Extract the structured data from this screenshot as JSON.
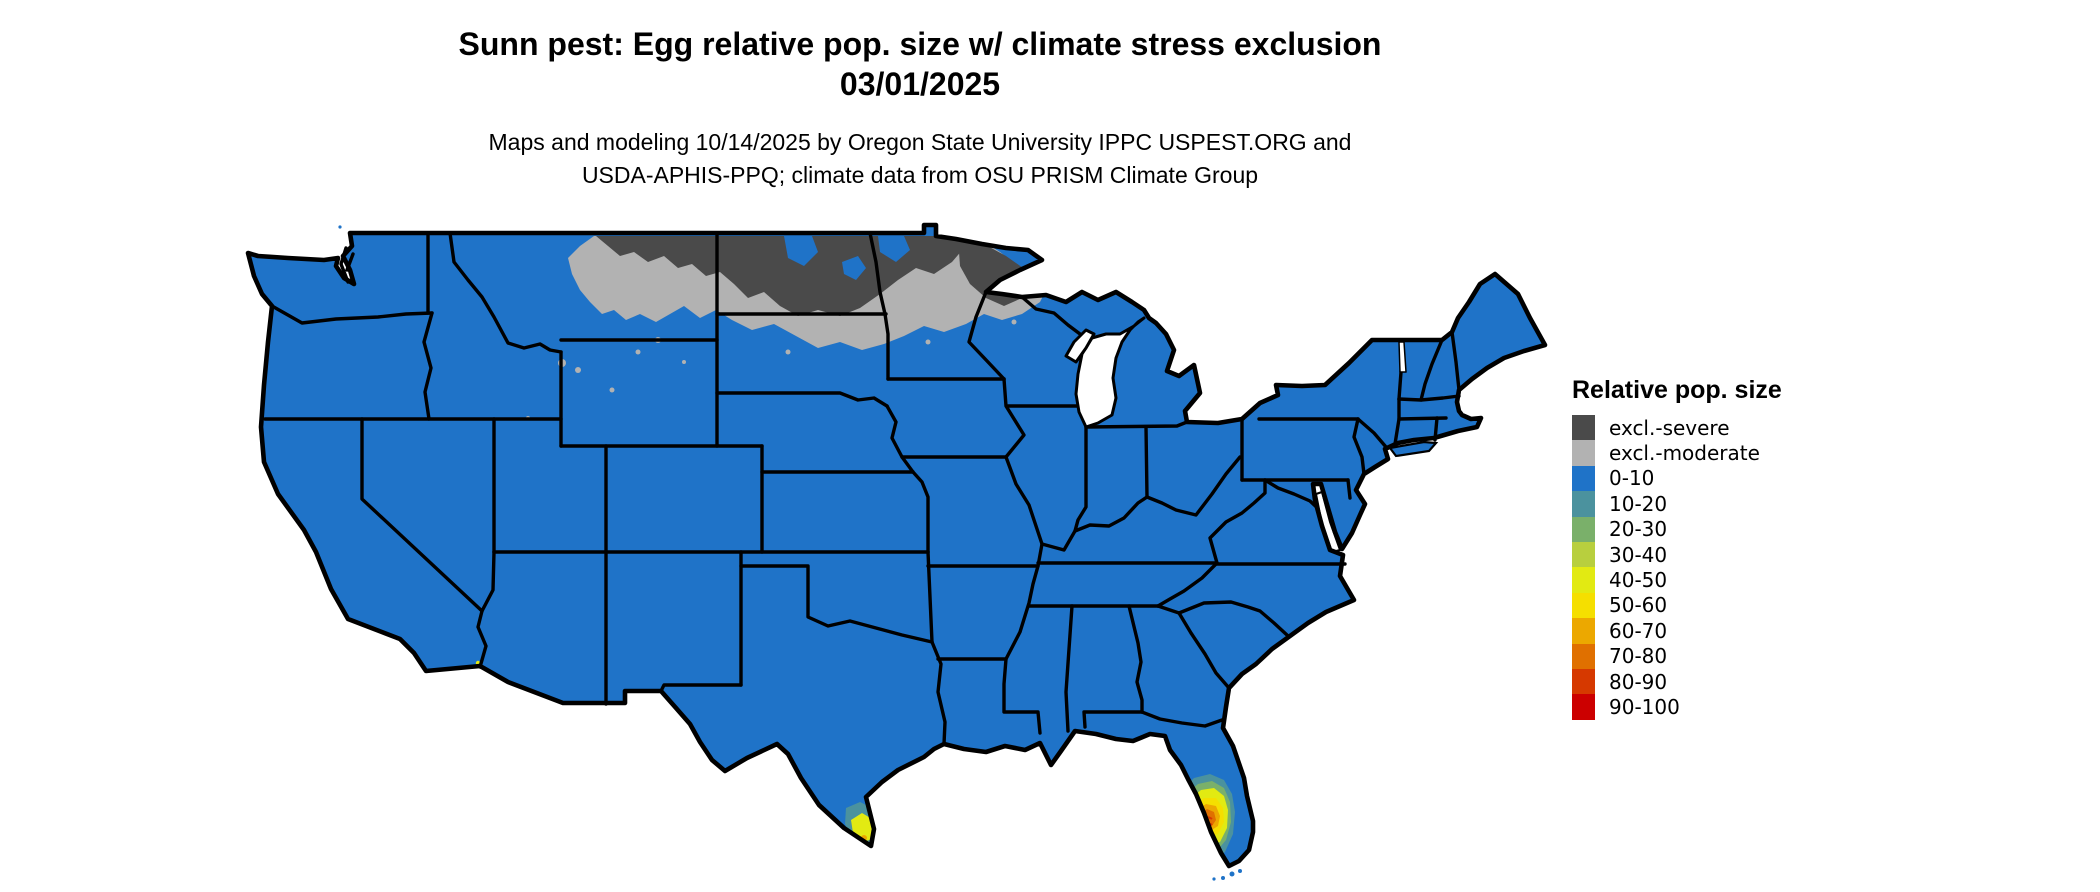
{
  "page": {
    "background": "#ffffff"
  },
  "title": {
    "line1": "Sunn pest: Egg relative pop. size w/ climate stress exclusion",
    "line2": "03/01/2025"
  },
  "subtitle": {
    "line1": "Maps and modeling 10/14/2025 by Oregon State University IPPC USPEST.ORG and",
    "line2": "USDA-APHIS-PPQ; climate data from OSU PRISM Climate Group"
  },
  "legend": {
    "title": "Relative pop. size",
    "items": [
      {
        "label": "excl.-severe",
        "color": "#4a4a4a"
      },
      {
        "label": "excl.-moderate",
        "color": "#b2b2b2"
      },
      {
        "label": "0-10",
        "color": "#1f73c8"
      },
      {
        "label": "10-20",
        "color": "#4b929e"
      },
      {
        "label": "20-30",
        "color": "#7ab06a"
      },
      {
        "label": "30-40",
        "color": "#b8cf3e"
      },
      {
        "label": "40-50",
        "color": "#e2ea12"
      },
      {
        "label": "50-60",
        "color": "#f5df00"
      },
      {
        "label": "60-70",
        "color": "#eca800"
      },
      {
        "label": "70-80",
        "color": "#e07000"
      },
      {
        "label": "80-90",
        "color": "#d63900"
      },
      {
        "label": "90-100",
        "color": "#cc0000"
      }
    ]
  },
  "map": {
    "region": "Contiguous United States",
    "border_color": "#000000",
    "water_color": "#ffffff",
    "base_class": "0-10",
    "features": [
      {
        "name": "northern-exclusion-zone",
        "description": "excl.-severe core across northern Montana, North Dakota and the Minnesota arrowhead, fringed by excl.-moderate into central Montana, northern South Dakota, central Minnesota and northwest Wisconsin"
      },
      {
        "name": "south-florida-hotspot",
        "description": "concentric rings from 10-20 up to 80-90 contour lines over the south-central Florida peninsula"
      },
      {
        "name": "south-texas-hotspot",
        "description": "small 10-20 to 60-70 patch at the southern tip of Texas (Rio Grande Valley)"
      },
      {
        "name": "southern-california-speck",
        "description": "tiny 40-50 speck near the Mexico border in far southern California"
      }
    ]
  }
}
